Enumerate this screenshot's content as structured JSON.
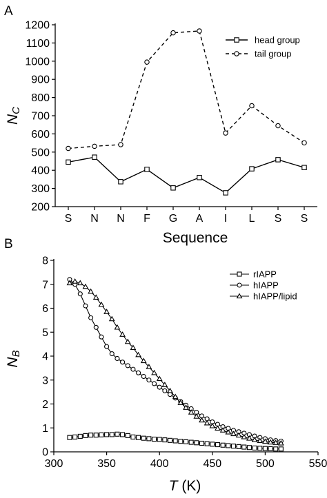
{
  "chart_data": [
    {
      "panel_label": "A",
      "type": "line",
      "ylabel_main": "N",
      "ylabel_sub": "C",
      "xlabel": "Sequence",
      "categories": [
        "S",
        "N",
        "N",
        "F",
        "G",
        "A",
        "I",
        "L",
        "S",
        "S"
      ],
      "ylim": [
        200,
        1200
      ],
      "yticks": [
        200,
        300,
        400,
        500,
        600,
        700,
        800,
        900,
        1000,
        1100,
        1200
      ],
      "legend_position": "top-right",
      "grid": false,
      "series": [
        {
          "name": "head group",
          "marker": "square",
          "dash": "solid",
          "values": [
            445,
            472,
            337,
            405,
            303,
            360,
            276,
            408,
            458,
            415
          ]
        },
        {
          "name": "tail group",
          "marker": "circle",
          "dash": "dashed",
          "values": [
            520,
            532,
            541,
            995,
            1156,
            1166,
            605,
            755,
            645,
            551
          ]
        }
      ]
    },
    {
      "panel_label": "B",
      "type": "line",
      "ylabel_main": "N",
      "ylabel_sub": "B",
      "xlabel_main": "T",
      "xlabel_unit": " (K)",
      "xlim": [
        300,
        550
      ],
      "xticks": [
        300,
        350,
        400,
        450,
        500,
        550
      ],
      "ylim": [
        0,
        8
      ],
      "yticks": [
        0,
        1,
        2,
        3,
        4,
        5,
        6,
        7,
        8
      ],
      "legend_position": "top-right",
      "grid": false,
      "series": [
        {
          "name": "rIAPP",
          "marker": "square",
          "x": [
            315,
            320,
            325,
            330,
            335,
            340,
            345,
            350,
            355,
            360,
            365,
            370,
            375,
            380,
            385,
            390,
            395,
            400,
            405,
            410,
            415,
            420,
            425,
            430,
            435,
            440,
            445,
            450,
            455,
            460,
            465,
            470,
            475,
            480,
            485,
            490,
            495,
            500,
            505,
            510,
            515
          ],
          "y": [
            0.6,
            0.62,
            0.65,
            0.68,
            0.7,
            0.7,
            0.71,
            0.72,
            0.72,
            0.74,
            0.72,
            0.68,
            0.62,
            0.6,
            0.57,
            0.55,
            0.53,
            0.52,
            0.5,
            0.48,
            0.46,
            0.44,
            0.42,
            0.4,
            0.38,
            0.36,
            0.34,
            0.32,
            0.3,
            0.28,
            0.26,
            0.24,
            0.22,
            0.2,
            0.18,
            0.16,
            0.15,
            0.14,
            0.13,
            0.12,
            0.12
          ]
        },
        {
          "name": "hIAPP",
          "marker": "circle",
          "x": [
            315,
            320,
            325,
            330,
            335,
            340,
            345,
            350,
            355,
            360,
            365,
            370,
            375,
            380,
            385,
            390,
            395,
            400,
            405,
            410,
            415,
            420,
            425,
            430,
            435,
            440,
            445,
            450,
            455,
            460,
            465,
            470,
            475,
            480,
            485,
            490,
            495,
            500,
            505,
            510,
            515
          ],
          "y": [
            7.2,
            7.0,
            6.6,
            6.1,
            5.6,
            5.2,
            4.8,
            4.4,
            4.1,
            3.9,
            3.75,
            3.6,
            3.45,
            3.3,
            3.15,
            3.0,
            2.85,
            2.7,
            2.55,
            2.4,
            2.25,
            2.1,
            1.95,
            1.8,
            1.65,
            1.5,
            1.38,
            1.25,
            1.15,
            1.05,
            0.98,
            0.9,
            0.84,
            0.78,
            0.72,
            0.66,
            0.6,
            0.55,
            0.5,
            0.47,
            0.45
          ]
        },
        {
          "name": "hIAPP/lipid",
          "marker": "triangle",
          "x": [
            315,
            320,
            325,
            330,
            335,
            340,
            345,
            350,
            355,
            360,
            365,
            370,
            375,
            380,
            385,
            390,
            395,
            400,
            405,
            410,
            415,
            420,
            425,
            430,
            435,
            440,
            445,
            450,
            455,
            460,
            465,
            470,
            475,
            480,
            485,
            490,
            495,
            500,
            505,
            510,
            515
          ],
          "y": [
            7.05,
            7.12,
            7.05,
            6.9,
            6.7,
            6.45,
            6.15,
            5.85,
            5.55,
            5.2,
            4.9,
            4.6,
            4.35,
            4.05,
            3.8,
            3.55,
            3.3,
            3.05,
            2.8,
            2.55,
            2.3,
            2.05,
            1.85,
            1.65,
            1.48,
            1.32,
            1.2,
            1.08,
            0.98,
            0.9,
            0.82,
            0.75,
            0.69,
            0.62,
            0.56,
            0.5,
            0.46,
            0.43,
            0.4,
            0.38,
            0.36
          ]
        }
      ]
    }
  ]
}
